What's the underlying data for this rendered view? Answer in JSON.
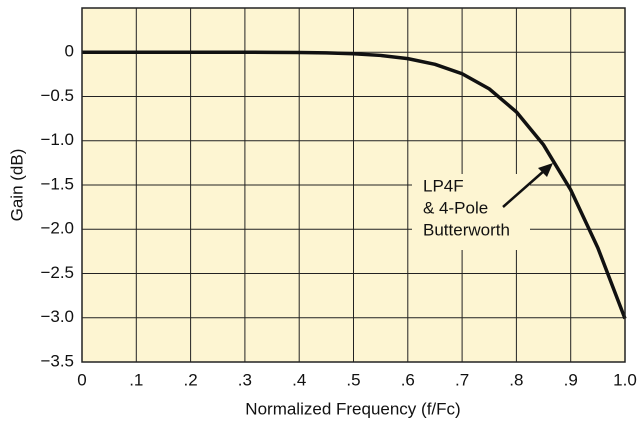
{
  "chart_data": {
    "type": "line",
    "x_label": "Normalized Frequency (f/Fc)",
    "y_label": "Gain (dB)",
    "x": [
      0,
      0.05,
      0.1,
      0.15,
      0.2,
      0.25,
      0.3,
      0.35,
      0.4,
      0.45,
      0.5,
      0.55,
      0.6,
      0.65,
      0.7,
      0.75,
      0.8,
      0.85,
      0.9,
      0.95,
      1.0
    ],
    "values": [
      0,
      0,
      0,
      0,
      0,
      -0.0001,
      -0.0003,
      -0.001,
      -0.003,
      -0.007,
      -0.017,
      -0.036,
      -0.072,
      -0.136,
      -0.243,
      -0.414,
      -0.674,
      -1.047,
      -1.555,
      -2.21,
      -3.01
    ],
    "color": "#111111",
    "xlim": [
      0,
      1.0
    ],
    "xticks": [
      0,
      {
        "value": 0.1,
        "label": ".1"
      },
      {
        "value": 0.2,
        "label": ".2"
      },
      {
        "value": 0.3,
        "label": ".3"
      },
      {
        "value": 0.4,
        "label": ".4"
      },
      {
        "value": 0.5,
        "label": ".5"
      },
      {
        "value": 0.6,
        "label": ".6"
      },
      {
        "value": 0.7,
        "label": ".7"
      },
      {
        "value": 0.8,
        "label": ".8"
      },
      {
        "value": 0.9,
        "label": ".9"
      },
      {
        "value": 1.0,
        "label": "1.0"
      }
    ],
    "ylim": [
      -3.5,
      0.5
    ],
    "yticks": [
      0,
      {
        "value": -0.5,
        "label": "−0.5"
      },
      {
        "value": -1.0,
        "label": "−1.0"
      },
      {
        "value": -1.5,
        "label": "−1.5"
      },
      {
        "value": -2.0,
        "label": "−2.0"
      },
      {
        "value": -2.5,
        "label": "−2.5"
      },
      {
        "value": -3.0,
        "label": "−3.0"
      },
      {
        "value": -3.5,
        "label": "−3.5"
      }
    ],
    "grid": true,
    "annotation": [
      "LP4F",
      "& 4-Pole",
      "Butterworth"
    ]
  }
}
